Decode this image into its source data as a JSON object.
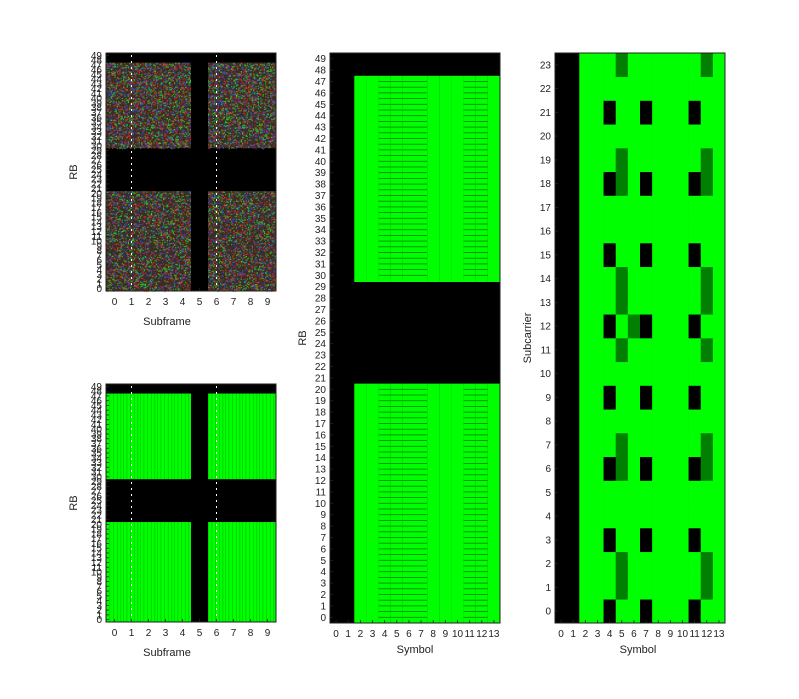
{
  "colors": {
    "background": "#ffffff",
    "empty": "#000000",
    "allocated": "#00ff00",
    "reference": "#007f00",
    "grid_dot": "#ffffff",
    "noise_red": "#ff2a2a",
    "noise_green": "#22ff22",
    "noise_blue": "#3355ff"
  },
  "chart_data": [
    {
      "type": "heatmap",
      "panel": "top-left",
      "xlabel": "Subframe",
      "ylabel": "RB",
      "x_ticks": [
        "0",
        "1",
        "2",
        "3",
        "4",
        "5",
        "6",
        "7",
        "8",
        "9"
      ],
      "y_ticks": [
        "0",
        "1",
        "2",
        "3",
        "4",
        "5",
        "6",
        "7",
        "8",
        "9",
        "10",
        "11",
        "12",
        "13",
        "14",
        "15",
        "16",
        "17",
        "18",
        "19",
        "20",
        "21",
        "22",
        "23",
        "24",
        "25",
        "26",
        "27",
        "28",
        "29",
        "30",
        "31",
        "32",
        "33",
        "34",
        "35",
        "36",
        "37",
        "38",
        "39",
        "40",
        "41",
        "42",
        "43",
        "44",
        "45",
        "46",
        "47",
        "48",
        "49"
      ],
      "xlim": [
        -0.5,
        9.5
      ],
      "ylim": [
        -0.5,
        49.5
      ],
      "allocated_subframes": [
        0,
        1,
        2,
        3,
        4,
        6,
        7,
        8,
        9
      ],
      "empty_subframes": [
        5
      ],
      "allocated_rb_ranges": [
        [
          0,
          20
        ],
        [
          30,
          47
        ]
      ],
      "empty_rb_ranges": [
        [
          21,
          29
        ],
        [
          48,
          49
        ]
      ],
      "fill": "noise"
    },
    {
      "type": "heatmap",
      "panel": "bottom-left",
      "xlabel": "Subframe",
      "ylabel": "RB",
      "x_ticks": [
        "0",
        "1",
        "2",
        "3",
        "4",
        "5",
        "6",
        "7",
        "8",
        "9"
      ],
      "y_ticks": [
        "0",
        "1",
        "2",
        "3",
        "4",
        "5",
        "6",
        "7",
        "8",
        "9",
        "10",
        "11",
        "12",
        "13",
        "14",
        "15",
        "16",
        "17",
        "18",
        "19",
        "20",
        "21",
        "22",
        "23",
        "24",
        "25",
        "26",
        "27",
        "28",
        "29",
        "30",
        "31",
        "32",
        "33",
        "34",
        "35",
        "36",
        "37",
        "38",
        "39",
        "40",
        "41",
        "42",
        "43",
        "44",
        "45",
        "46",
        "47",
        "48",
        "49"
      ],
      "xlim": [
        -0.5,
        9.5
      ],
      "ylim": [
        -0.5,
        49.5
      ],
      "allocated_subframes": [
        0,
        1,
        2,
        3,
        4,
        6,
        7,
        8,
        9
      ],
      "empty_subframes": [
        5
      ],
      "allocated_rb_ranges": [
        [
          0,
          20
        ],
        [
          30,
          47
        ]
      ],
      "empty_rb_ranges": [
        [
          21,
          29
        ],
        [
          48,
          49
        ]
      ],
      "fill": "green"
    },
    {
      "type": "heatmap",
      "panel": "middle",
      "xlabel": "Symbol",
      "ylabel": "RB",
      "x_ticks": [
        "0",
        "1",
        "2",
        "3",
        "4",
        "5",
        "6",
        "7",
        "8",
        "9",
        "10",
        "11",
        "12",
        "13"
      ],
      "y_ticks": [
        "0",
        "1",
        "2",
        "3",
        "4",
        "5",
        "6",
        "7",
        "8",
        "9",
        "10",
        "11",
        "12",
        "13",
        "14",
        "15",
        "16",
        "17",
        "18",
        "19",
        "20",
        "21",
        "22",
        "23",
        "24",
        "25",
        "26",
        "27",
        "28",
        "29",
        "30",
        "31",
        "32",
        "33",
        "34",
        "35",
        "36",
        "37",
        "38",
        "39",
        "40",
        "41",
        "42",
        "43",
        "44",
        "45",
        "46",
        "47",
        "48",
        "49"
      ],
      "xlim": [
        -0.5,
        13.5
      ],
      "ylim": [
        -0.5,
        49.5
      ],
      "empty_symbols": [
        0,
        1
      ],
      "reference_symbols": [
        4,
        7,
        11
      ],
      "allocated_rb_ranges": [
        [
          0,
          20
        ],
        [
          30,
          47
        ]
      ],
      "empty_rb_ranges": [
        [
          21,
          29
        ],
        [
          48,
          49
        ]
      ]
    },
    {
      "type": "heatmap",
      "panel": "right",
      "xlabel": "Symbol",
      "ylabel": "Subcarrier",
      "x_ticks": [
        "0",
        "1",
        "2",
        "3",
        "4",
        "5",
        "6",
        "7",
        "8",
        "9",
        "10",
        "11",
        "12",
        "13"
      ],
      "y_ticks": [
        "0",
        "1",
        "2",
        "3",
        "4",
        "5",
        "6",
        "7",
        "8",
        "9",
        "10",
        "11",
        "12",
        "13",
        "14",
        "15",
        "16",
        "17",
        "18",
        "19",
        "20",
        "21",
        "22",
        "23"
      ],
      "xlim": [
        -0.5,
        13.5
      ],
      "ylim": [
        -0.5,
        23.5
      ],
      "empty_symbols": [
        0,
        1
      ],
      "empty_cells": [
        [
          4,
          0
        ],
        [
          4,
          3
        ],
        [
          4,
          6
        ],
        [
          4,
          9
        ],
        [
          4,
          12
        ],
        [
          4,
          15
        ],
        [
          4,
          18
        ],
        [
          4,
          21
        ],
        [
          7,
          0
        ],
        [
          7,
          3
        ],
        [
          7,
          6
        ],
        [
          7,
          9
        ],
        [
          7,
          12
        ],
        [
          7,
          15
        ],
        [
          7,
          18
        ],
        [
          7,
          21
        ],
        [
          11,
          0
        ],
        [
          11,
          3
        ],
        [
          11,
          6
        ],
        [
          11,
          9
        ],
        [
          11,
          12
        ],
        [
          11,
          15
        ],
        [
          11,
          18
        ],
        [
          11,
          21
        ]
      ],
      "reference_cells": [
        [
          5,
          1
        ],
        [
          5,
          2
        ],
        [
          5,
          6
        ],
        [
          5,
          7
        ],
        [
          5,
          11
        ],
        [
          5,
          13
        ],
        [
          5,
          14
        ],
        [
          5,
          18
        ],
        [
          5,
          19
        ],
        [
          5,
          23
        ],
        [
          6,
          12
        ],
        [
          12,
          1
        ],
        [
          12,
          2
        ],
        [
          12,
          6
        ],
        [
          12,
          7
        ],
        [
          12,
          11
        ],
        [
          12,
          13
        ],
        [
          12,
          14
        ],
        [
          12,
          18
        ],
        [
          12,
          19
        ],
        [
          12,
          23
        ]
      ]
    }
  ]
}
